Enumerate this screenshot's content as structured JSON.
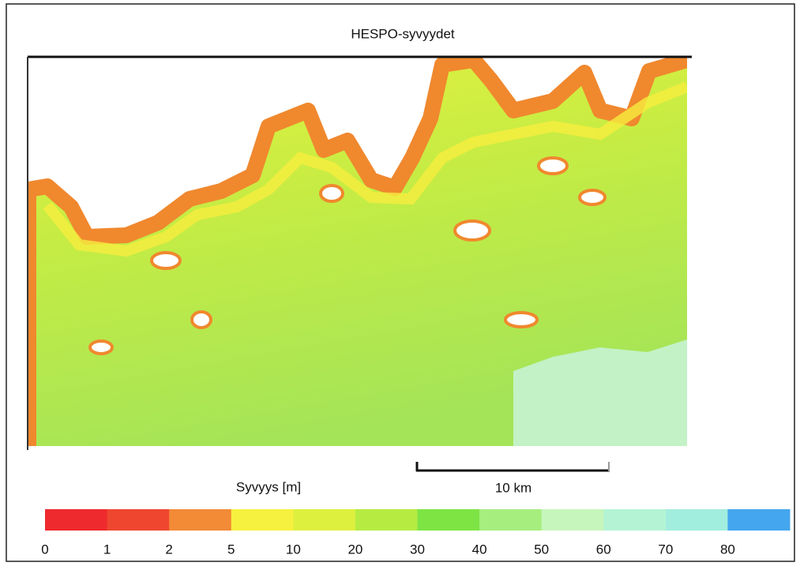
{
  "title": "HESPO-syvyydet",
  "scale_bar": {
    "label": "10 km"
  },
  "legend": {
    "title": "Syvyys [m]",
    "items": [
      {
        "label": 0,
        "color": "#ee2a2e"
      },
      {
        "label": 1,
        "color": "#ef4630"
      },
      {
        "label": 2,
        "color": "#f28a36"
      },
      {
        "label": 5,
        "color": "#f6f03e"
      },
      {
        "label": 10,
        "color": "#def03e"
      },
      {
        "label": 20,
        "color": "#b6ec42"
      },
      {
        "label": 30,
        "color": "#7ee444"
      },
      {
        "label": 40,
        "color": "#a6ee7e"
      },
      {
        "label": 50,
        "color": "#c6f6bc"
      },
      {
        "label": 60,
        "color": "#b4f4d4"
      },
      {
        "label": 70,
        "color": "#a2eede"
      },
      {
        "label": 80,
        "color": "#44a6ee"
      }
    ]
  }
}
